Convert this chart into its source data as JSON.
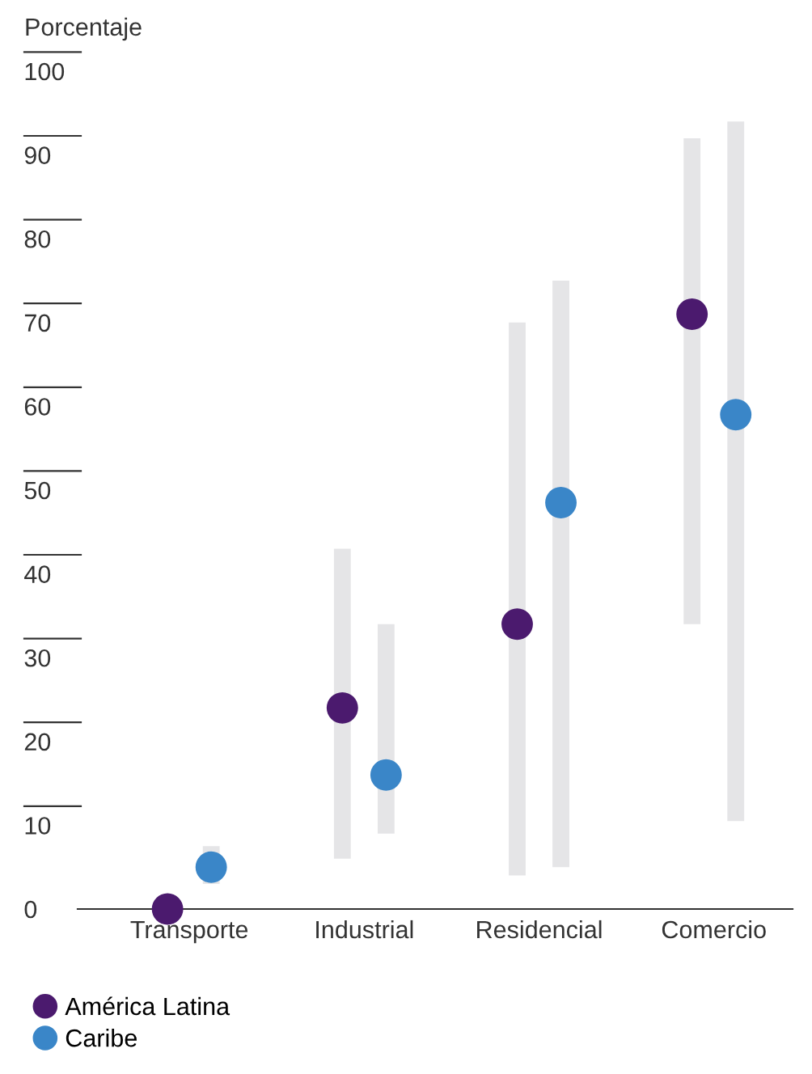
{
  "chart_data": {
    "type": "scatter",
    "ylabel": "Porcentaje",
    "categories": [
      "Transporte",
      "Industrial",
      "Residencial",
      "Comercio"
    ],
    "series": [
      {
        "name": "América Latina",
        "color": "#4b1a6e",
        "values": [
          0,
          24,
          34,
          71
        ],
        "errors": [
          null,
          [
            6,
            43
          ],
          [
            4,
            70
          ],
          [
            34,
            92
          ]
        ]
      },
      {
        "name": "Caribe",
        "color": "#3a86c8",
        "values": [
          5,
          16,
          48.5,
          59
        ],
        "errors": [
          [
            3,
            7.5
          ],
          [
            9,
            34
          ],
          [
            5,
            75
          ],
          [
            10.5,
            94
          ]
        ]
      }
    ],
    "ylim": [
      0,
      100
    ],
    "yticks": [
      0,
      10,
      20,
      30,
      40,
      50,
      60,
      70,
      80,
      90,
      100
    ],
    "grid": false,
    "legend": "bottom left",
    "marker": "circle"
  }
}
